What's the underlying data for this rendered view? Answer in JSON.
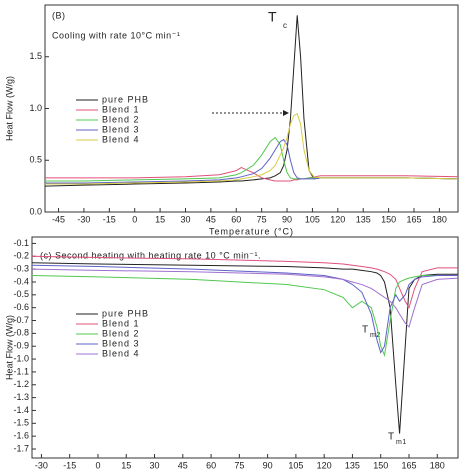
{
  "chart_data": [
    {
      "type": "line",
      "annotations": [
        "(B)",
        "Cooling with rate 10°C min⁻¹",
        "T",
        "c"
      ],
      "x_label": "Temperature (°C)",
      "y_label": "Heat Flow (W/g)",
      "xlim": [
        -53,
        191
      ],
      "ylim": [
        0,
        2
      ],
      "xticks": [
        -45,
        -30,
        -15,
        0,
        15,
        30,
        45,
        60,
        75,
        90,
        105,
        120,
        135,
        150,
        165,
        180
      ],
      "yticks": [
        {
          "value": 0,
          "label": "0.0"
        },
        0.5,
        {
          "value": 1,
          "label": "1.0"
        },
        1.5
      ],
      "x": [
        -53,
        -30,
        0,
        30,
        50,
        60,
        63,
        70,
        75,
        80,
        83,
        86,
        88,
        90,
        92,
        94,
        96,
        98,
        100,
        103,
        106,
        110,
        130,
        160,
        191
      ],
      "series": [
        {
          "name": "pure PHB",
          "color": "#222222",
          "values": [
            0.25,
            0.26,
            0.27,
            0.28,
            0.29,
            0.3,
            0.3,
            0.31,
            0.32,
            0.33,
            0.35,
            0.38,
            0.45,
            0.6,
            0.9,
            1.4,
            1.9,
            1.5,
            0.9,
            0.4,
            0.32,
            0.33,
            0.33,
            0.33,
            0.32
          ]
        },
        {
          "name": "Blend 1",
          "color": "#e0507a",
          "values": [
            0.33,
            0.33,
            0.33,
            0.34,
            0.36,
            0.4,
            0.43,
            0.38,
            0.33,
            0.31,
            0.3,
            0.3,
            0.3,
            0.3,
            0.3,
            0.31,
            0.31,
            0.32,
            0.32,
            0.33,
            0.34,
            0.35,
            0.35,
            0.35,
            0.34
          ]
        },
        {
          "name": "Blend 2",
          "color": "#50c850",
          "values": [
            0.3,
            0.3,
            0.31,
            0.32,
            0.33,
            0.36,
            0.38,
            0.45,
            0.55,
            0.68,
            0.72,
            0.65,
            0.5,
            0.38,
            0.33,
            0.32,
            0.32,
            0.32,
            0.32,
            0.33,
            0.33,
            0.33,
            0.33,
            0.33,
            0.32
          ]
        },
        {
          "name": "Blend 3",
          "color": "#6060c8",
          "values": [
            0.28,
            0.28,
            0.29,
            0.3,
            0.31,
            0.33,
            0.34,
            0.37,
            0.42,
            0.52,
            0.6,
            0.68,
            0.7,
            0.65,
            0.5,
            0.38,
            0.33,
            0.32,
            0.32,
            0.32,
            0.32,
            0.33,
            0.33,
            0.33,
            0.32
          ]
        },
        {
          "name": "Blend 4",
          "color": "#d8cc40",
          "values": [
            0.27,
            0.27,
            0.28,
            0.29,
            0.3,
            0.31,
            0.32,
            0.34,
            0.36,
            0.4,
            0.45,
            0.55,
            0.62,
            0.72,
            0.85,
            0.93,
            0.95,
            0.85,
            0.6,
            0.4,
            0.34,
            0.33,
            0.33,
            0.33,
            0.32
          ]
        }
      ]
    },
    {
      "type": "line",
      "annotations": [
        "(c) Second heating with heating rate 10 °C min⁻¹.",
        "T",
        "m2",
        "T",
        "m1"
      ],
      "x_label": "Temperature (°C)",
      "y_label": "Heat Flow (W/g)",
      "xlim": [
        -35,
        191
      ],
      "ylim": [
        -1.77,
        -0.05
      ],
      "xticks": [
        -30,
        -15,
        0,
        15,
        30,
        45,
        60,
        75,
        90,
        105,
        120,
        135,
        150,
        165,
        180
      ],
      "yticks": [
        -0.1,
        -0.2,
        -0.3,
        -0.4,
        -0.5,
        -0.6,
        -0.7,
        -0.8,
        -0.9,
        {
          "value": -1,
          "label": "-1.0"
        },
        -1.1,
        -1.2,
        -1.3,
        -1.4,
        -1.5,
        -1.6,
        -1.7
      ],
      "x": [
        -35,
        0,
        50,
        100,
        120,
        130,
        135,
        140,
        145,
        148,
        150,
        152,
        155,
        158,
        160,
        163,
        165,
        168,
        172,
        180,
        191
      ],
      "series": [
        {
          "name": "pure PHB",
          "color": "#222222",
          "values": [
            -0.25,
            -0.26,
            -0.27,
            -0.28,
            -0.29,
            -0.3,
            -0.3,
            -0.31,
            -0.32,
            -0.33,
            -0.35,
            -0.4,
            -0.6,
            -1.2,
            -1.58,
            -0.9,
            -0.45,
            -0.38,
            -0.35,
            -0.34,
            -0.34
          ]
        },
        {
          "name": "Blend 1",
          "color": "#e0507a",
          "values": [
            -0.2,
            -0.21,
            -0.22,
            -0.24,
            -0.25,
            -0.26,
            -0.27,
            -0.28,
            -0.29,
            -0.3,
            -0.31,
            -0.32,
            -0.34,
            -0.38,
            -0.45,
            -0.55,
            -0.6,
            -0.45,
            -0.32,
            -0.29,
            -0.29
          ]
        },
        {
          "name": "Blend 2",
          "color": "#50c850",
          "values": [
            -0.35,
            -0.36,
            -0.38,
            -0.42,
            -0.46,
            -0.52,
            -0.6,
            -0.55,
            -0.6,
            -0.75,
            -0.9,
            -0.97,
            -0.7,
            -0.45,
            -0.4,
            -0.38,
            -0.37,
            -0.36,
            -0.35,
            -0.35,
            -0.35
          ]
        },
        {
          "name": "Blend 3",
          "color": "#6060c8",
          "values": [
            -0.27,
            -0.28,
            -0.3,
            -0.33,
            -0.35,
            -0.38,
            -0.42,
            -0.48,
            -0.65,
            -0.85,
            -0.95,
            -0.9,
            -0.6,
            -0.5,
            -0.55,
            -0.5,
            -0.42,
            -0.38,
            -0.36,
            -0.35,
            -0.35
          ]
        },
        {
          "name": "Blend 4",
          "color": "#a070d0",
          "values": [
            -0.3,
            -0.31,
            -0.32,
            -0.34,
            -0.36,
            -0.38,
            -0.4,
            -0.42,
            -0.45,
            -0.48,
            -0.5,
            -0.52,
            -0.55,
            -0.6,
            -0.65,
            -0.72,
            -0.75,
            -0.6,
            -0.42,
            -0.38,
            -0.37
          ]
        }
      ]
    }
  ]
}
